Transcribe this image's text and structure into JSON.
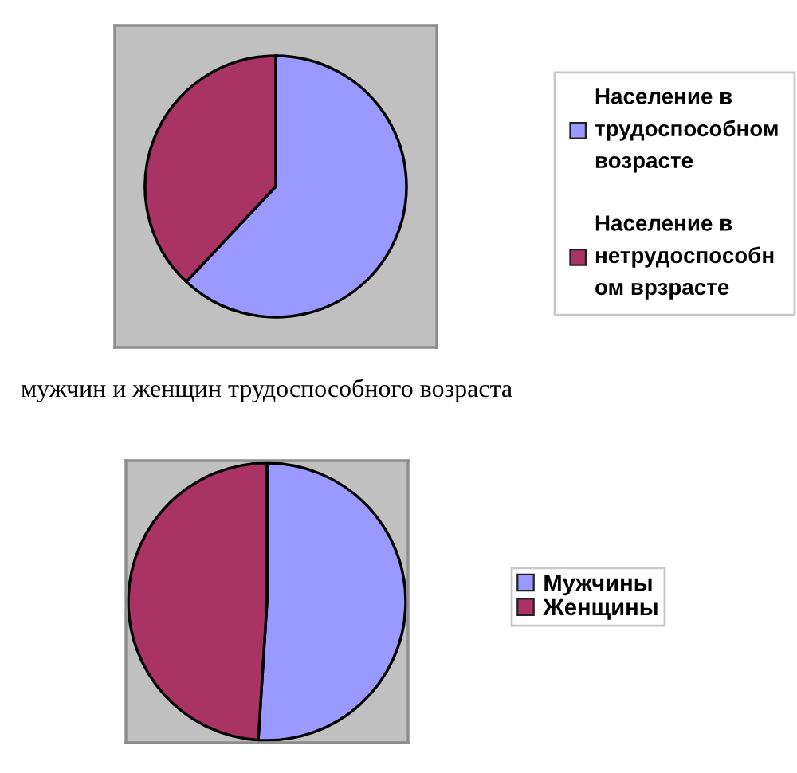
{
  "chart_data": [
    {
      "type": "pie",
      "categories": [
        "Население в\nтрудоспособном\nвозрасте",
        "Население в\nнетрудоспособн\nом врзрасте"
      ],
      "values": [
        62,
        38
      ],
      "colors": [
        "#9999ff",
        "#a93363"
      ],
      "legend": "right"
    },
    {
      "type": "pie",
      "title": "мужчин и женщин трудоспособного возраста",
      "categories": [
        "Мужчины",
        "Женщины"
      ],
      "values": [
        51,
        49
      ],
      "colors": [
        "#9999ff",
        "#a93363"
      ],
      "legend": "right"
    }
  ]
}
